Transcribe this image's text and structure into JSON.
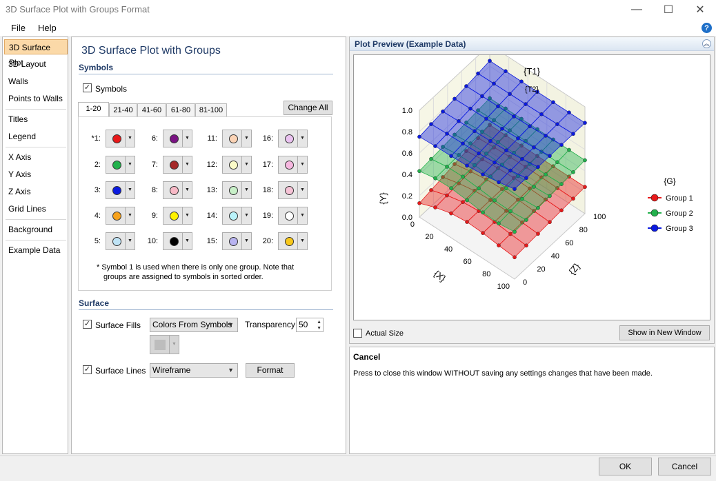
{
  "window": {
    "title": "3D Surface Plot with Groups Format",
    "minimize": "—",
    "maximize": "☐",
    "close": "✕"
  },
  "menu": {
    "file": "File",
    "help": "Help",
    "help_icon": "?"
  },
  "nav": {
    "items": [
      "3D Surface Plot",
      "3D Layout",
      "Walls",
      "Points to Walls",
      "Titles",
      "Legend",
      "X Axis",
      "Y Axis",
      "Z Axis",
      "Grid Lines",
      "Background",
      "Example Data"
    ]
  },
  "panel": {
    "title": "3D Surface Plot with Groups",
    "symbols_section": "Symbols",
    "symbols_checkbox": "Symbols",
    "tabs": [
      "1-20",
      "21-40",
      "41-60",
      "61-80",
      "81-100"
    ],
    "change_all": "Change All",
    "symbols": [
      {
        "label": "*1:",
        "color": "#e8191a"
      },
      {
        "label": "2:",
        "color": "#22b14c"
      },
      {
        "label": "3:",
        "color": "#0b1ae0"
      },
      {
        "label": "4:",
        "color": "#f7a21b"
      },
      {
        "label": "5:",
        "color": "#bfe3f5"
      },
      {
        "label": "6:",
        "color": "#7a1383"
      },
      {
        "label": "7:",
        "color": "#a52a2a"
      },
      {
        "label": "8:",
        "color": "#f8b9c6"
      },
      {
        "label": "9:",
        "color": "#fff200"
      },
      {
        "label": "10:",
        "color": "#000000"
      },
      {
        "label": "11:",
        "color": "#fbd3b5"
      },
      {
        "label": "12:",
        "color": "#fafac8"
      },
      {
        "label": "13:",
        "color": "#c8f0c8"
      },
      {
        "label": "14:",
        "color": "#b9f2fa"
      },
      {
        "label": "15:",
        "color": "#b8b3f0"
      },
      {
        "label": "16:",
        "color": "#eac2f0"
      },
      {
        "label": "17:",
        "color": "#f6b7df"
      },
      {
        "label": "18:",
        "color": "#f6c3d6"
      },
      {
        "label": "19:",
        "color": "#ffffff"
      },
      {
        "label": "20:",
        "color": "#f8c81b"
      }
    ],
    "note_line1": "* Symbol 1 is used when there is only one group.  Note that",
    "note_line2": "groups are assigned to symbols in sorted order.",
    "surface_section": "Surface",
    "surface_fills_label": "Surface Fills",
    "surface_fills_value": "Colors From Symbols",
    "transparency_label": "Transparency:",
    "transparency_value": "50",
    "surface_lines_label": "Surface Lines",
    "surface_lines_value": "Wireframe",
    "format_button": "Format"
  },
  "preview": {
    "header": "Plot Preview (Example Data)",
    "actual_size": "Actual Size",
    "show_new_window": "Show in New Window"
  },
  "chart_data": {
    "type": "surface",
    "title": "{T1}",
    "subtitle": "{T2}",
    "xlabel": "{X}",
    "ylabel": "{Y}",
    "zlabel": "{Z}",
    "x_ticks": [
      "0",
      "20",
      "40",
      "60",
      "80",
      "100"
    ],
    "y_ticks": [
      "0.0",
      "0.2",
      "0.4",
      "0.6",
      "0.8",
      "1.0"
    ],
    "z_ticks": [
      "0",
      "20",
      "40",
      "60",
      "80",
      "100"
    ],
    "legend_title": "{G}",
    "legend_position": "right",
    "series": [
      {
        "name": "Group 1",
        "color": "#e8191a",
        "level": 0.25
      },
      {
        "name": "Group 2",
        "color": "#22b14c",
        "level": 0.5
      },
      {
        "name": "Group 3",
        "color": "#0b1ae0",
        "level": 0.85
      }
    ]
  },
  "description": {
    "title": "Cancel",
    "body": "Press to close this window WITHOUT saving any settings changes that have been made."
  },
  "footer": {
    "ok": "OK",
    "cancel": "Cancel"
  }
}
